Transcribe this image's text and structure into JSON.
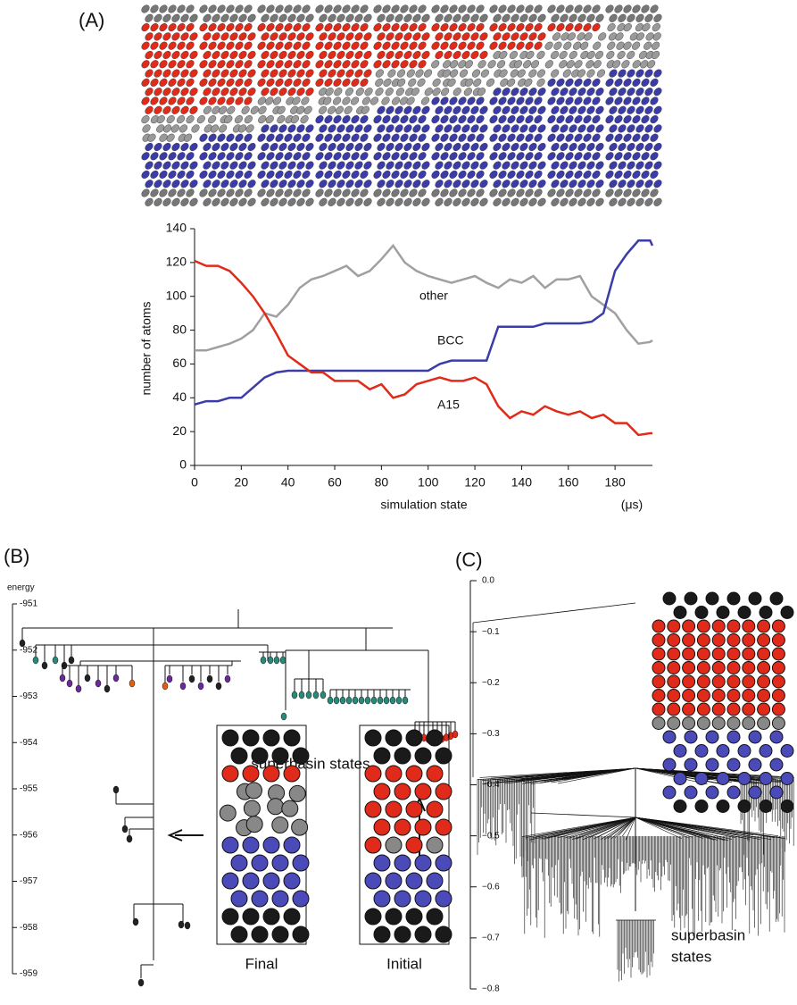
{
  "panel_labels": [
    "(A)",
    "(B)",
    "(C)"
  ],
  "chart_data": [
    {
      "type": "line",
      "xlabel": "simulation state",
      "xunit": "(μs)",
      "ylabel": "number of atoms",
      "x": [
        0,
        5,
        10,
        15,
        20,
        25,
        30,
        35,
        40,
        45,
        50,
        55,
        60,
        65,
        70,
        75,
        80,
        85,
        90,
        95,
        100,
        105,
        110,
        115,
        120,
        125,
        130,
        135,
        140,
        145,
        150,
        155,
        160,
        165,
        170,
        175,
        180,
        185,
        190,
        195,
        196
      ],
      "xlim": [
        0,
        196
      ],
      "xticks": [
        0,
        20,
        40,
        60,
        80,
        100,
        120,
        140,
        160,
        180
      ],
      "ylim": [
        0,
        140
      ],
      "yticks": [
        0,
        20,
        40,
        60,
        80,
        100,
        120,
        140
      ],
      "series": [
        {
          "name": "other",
          "color": "#a0a0a0",
          "values": [
            68,
            68,
            70,
            72,
            75,
            80,
            90,
            88,
            95,
            105,
            110,
            112,
            115,
            118,
            112,
            115,
            122,
            130,
            120,
            115,
            112,
            110,
            108,
            110,
            112,
            108,
            105,
            110,
            108,
            112,
            105,
            110,
            110,
            112,
            100,
            95,
            90,
            80,
            72,
            73,
            74
          ]
        },
        {
          "name": "BCC",
          "color": "#3c3ca8",
          "values": [
            36,
            38,
            38,
            40,
            40,
            46,
            52,
            55,
            56,
            56,
            56,
            56,
            56,
            56,
            56,
            56,
            56,
            56,
            56,
            56,
            56,
            60,
            62,
            62,
            62,
            62,
            82,
            82,
            82,
            82,
            84,
            84,
            84,
            84,
            85,
            90,
            115,
            125,
            133,
            133,
            130
          ]
        },
        {
          "name": "A15",
          "color": "#e02a1a",
          "values": [
            121,
            118,
            118,
            115,
            108,
            100,
            90,
            78,
            65,
            60,
            55,
            55,
            50,
            50,
            50,
            45,
            48,
            40,
            42,
            48,
            50,
            52,
            50,
            50,
            52,
            48,
            35,
            28,
            32,
            30,
            35,
            32,
            30,
            32,
            28,
            30,
            25,
            25,
            18,
            19,
            19
          ]
        }
      ]
    },
    {
      "type": "disconnectivity",
      "ylabel": "energy",
      "ylim": [
        -951,
        -959
      ],
      "yticks": [
        -951,
        -952,
        -953,
        -954,
        -955,
        -956,
        -957,
        -958,
        -959
      ],
      "annotation": "superbasin states",
      "insets": [
        "Final",
        "Initial"
      ]
    },
    {
      "type": "disconnectivity",
      "ylim": [
        0,
        -0.8
      ],
      "yticks": [
        {
          "value": 0,
          "label": "0.0"
        },
        {
          "value": -0.1,
          "label": "−0.1"
        },
        {
          "value": -0.2,
          "label": "−0.2"
        },
        {
          "value": -0.3,
          "label": "−0.3"
        },
        {
          "value": -0.4,
          "label": "−0.4"
        },
        {
          "value": -0.5,
          "label": "−0.5"
        },
        {
          "value": -0.6,
          "label": "−0.6"
        },
        {
          "value": -0.7,
          "label": "−0.7"
        },
        {
          "value": -0.8,
          "label": "−0.8"
        }
      ],
      "annotation": [
        "superbasin",
        "states"
      ]
    }
  ]
}
